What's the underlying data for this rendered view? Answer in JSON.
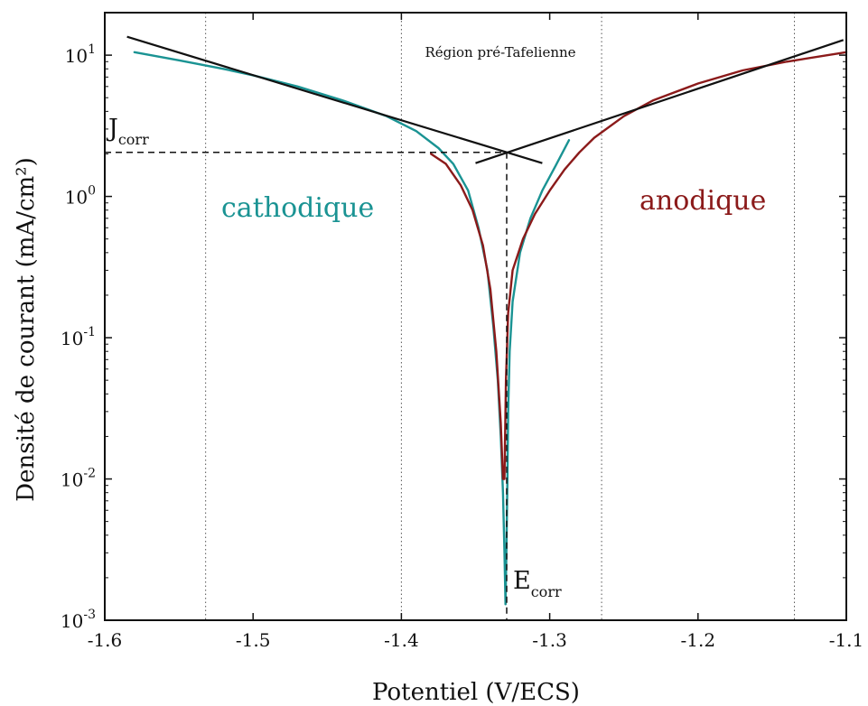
{
  "chart_data": {
    "type": "line",
    "title": "",
    "xlabel": "Potentiel (V/ECS)",
    "ylabel": "Densité de courant (mA/cm²)",
    "xlim": [
      -1.6,
      -1.1
    ],
    "ylim": [
      0.001,
      20
    ],
    "yscale": "log",
    "grid": false,
    "x_ticks": [
      -1.6,
      -1.5,
      -1.4,
      -1.3,
      -1.2,
      -1.1
    ],
    "x_tick_labels": [
      "-1.6",
      "-1.5",
      "-1.4",
      "-1.3",
      "-1.2",
      "-1.1"
    ],
    "y_ticks": [
      0.001,
      0.01,
      0.1,
      1,
      10
    ],
    "y_tick_labels": [
      {
        "base": "10",
        "exp": "-3"
      },
      {
        "base": "10",
        "exp": "-2"
      },
      {
        "base": "10",
        "exp": "-1"
      },
      {
        "base": "10",
        "exp": "0"
      },
      {
        "base": "10",
        "exp": "1"
      }
    ],
    "region_lines_x": [
      -1.532,
      -1.4,
      -1.265,
      -1.135
    ],
    "region_label": "Région pré-Tafelienne",
    "series": [
      {
        "color": "#1a9393",
        "points": [
          [
            -1.58,
            10.5
          ],
          [
            -1.55,
            9.2
          ],
          [
            -1.52,
            8.0
          ],
          [
            -1.5,
            7.2
          ],
          [
            -1.47,
            6.0
          ],
          [
            -1.44,
            4.8
          ],
          [
            -1.41,
            3.7
          ],
          [
            -1.39,
            2.9
          ],
          [
            -1.375,
            2.2
          ],
          [
            -1.365,
            1.7
          ],
          [
            -1.355,
            1.1
          ],
          [
            -1.348,
            0.6
          ],
          [
            -1.342,
            0.3
          ],
          [
            -1.338,
            0.12
          ],
          [
            -1.335,
            0.05
          ],
          [
            -1.333,
            0.02
          ],
          [
            -1.3315,
            0.008
          ],
          [
            -1.3305,
            0.003
          ],
          [
            -1.3298,
            0.0013
          ]
        ]
      },
      {
        "color": "#1a9393",
        "points": [
          [
            -1.3298,
            0.0013
          ],
          [
            -1.3292,
            0.003
          ],
          [
            -1.3285,
            0.01
          ],
          [
            -1.328,
            0.03
          ],
          [
            -1.327,
            0.08
          ],
          [
            -1.325,
            0.18
          ],
          [
            -1.32,
            0.4
          ],
          [
            -1.313,
            0.7
          ],
          [
            -1.305,
            1.1
          ],
          [
            -1.296,
            1.65
          ],
          [
            -1.287,
            2.5
          ]
        ]
      },
      {
        "color": "#8b1a1a",
        "points": [
          [
            -1.38,
            2.0
          ],
          [
            -1.37,
            1.7
          ],
          [
            -1.36,
            1.2
          ],
          [
            -1.352,
            0.8
          ],
          [
            -1.345,
            0.45
          ],
          [
            -1.34,
            0.22
          ],
          [
            -1.336,
            0.08
          ],
          [
            -1.333,
            0.025
          ],
          [
            -1.3315,
            0.01
          ],
          [
            -1.3305,
            0.01
          ],
          [
            -1.3295,
            0.05
          ],
          [
            -1.328,
            0.15
          ],
          [
            -1.325,
            0.3
          ],
          [
            -1.318,
            0.5
          ],
          [
            -1.31,
            0.75
          ],
          [
            -1.3,
            1.1
          ],
          [
            -1.29,
            1.55
          ],
          [
            -1.28,
            2.05
          ],
          [
            -1.27,
            2.6
          ],
          [
            -1.25,
            3.7
          ],
          [
            -1.23,
            4.8
          ],
          [
            -1.2,
            6.3
          ],
          [
            -1.17,
            7.8
          ],
          [
            -1.14,
            9.0
          ],
          [
            -1.1,
            10.5
          ]
        ]
      }
    ],
    "tafel_lines": [
      {
        "x": [
          -1.585,
          -1.305
        ],
        "y": [
          13.5,
          1.72
        ]
      },
      {
        "x": [
          -1.35,
          -1.102
        ],
        "y": [
          1.72,
          12.8
        ]
      }
    ],
    "corrosion": {
      "x": -1.329,
      "y": 2.05
    },
    "annotations": {
      "jcorr": {
        "main": "J",
        "sub": "corr"
      },
      "ecorr": {
        "main": "E",
        "sub": "corr"
      },
      "cathodic": {
        "text": "cathodique",
        "color": "#1a9393"
      },
      "anodic": {
        "text": "anodique",
        "color": "#8b1a1a"
      }
    }
  }
}
